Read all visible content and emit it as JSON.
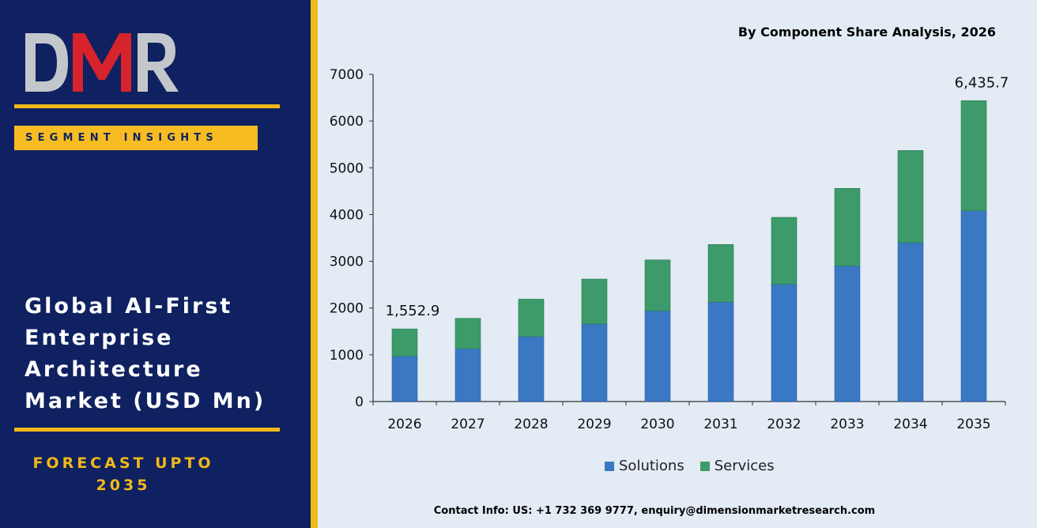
{
  "brand": {
    "logo_text": "DMR",
    "logo_red": "#d7232c",
    "logo_gray": "#c3c7cc"
  },
  "left_panel": {
    "segment_label": "SEGMENT INSIGHTS",
    "market_title_lines": [
      "Global AI-First",
      "Enterprise",
      "Architecture",
      "Market (USD Mn)"
    ],
    "forecast_lines": [
      "FORECAST UPTO",
      "2035"
    ],
    "colors": {
      "background": "#0f2160",
      "accent": "#f2b81a"
    }
  },
  "contact": "Contact Info: US: +1 732 369 9777, enquiry@dimensionmarketresearch.com",
  "chart_data": {
    "type": "bar",
    "stacked": true,
    "title": "By Component Share Analysis, 2026",
    "xlabel": "",
    "ylabel": "",
    "categories": [
      "2026",
      "2027",
      "2028",
      "2029",
      "2030",
      "2031",
      "2032",
      "2033",
      "2034",
      "2035"
    ],
    "series": [
      {
        "name": "Solutions",
        "color": "#3a78c4",
        "values": [
          970,
          1130,
          1390,
          1660,
          1940,
          2130,
          2510,
          2900,
          3400,
          4080
        ]
      },
      {
        "name": "Services",
        "color": "#3d9a6a",
        "values": [
          582.9,
          650,
          800,
          960,
          1090,
          1230,
          1430,
          1660,
          1970,
          2355.7
        ]
      }
    ],
    "totals": [
      1552.9,
      1780,
      2190,
      2620,
      3030,
      3360,
      3940,
      4560,
      5370,
      6435.7
    ],
    "data_labels": [
      {
        "category": "2026",
        "text": "1,552.9"
      },
      {
        "category": "2035",
        "text": "6,435.7"
      }
    ],
    "ylim": [
      0,
      7000
    ],
    "yticks": [
      0,
      1000,
      2000,
      3000,
      4000,
      5000,
      6000,
      7000
    ],
    "grid": false,
    "legend_position": "bottom"
  }
}
